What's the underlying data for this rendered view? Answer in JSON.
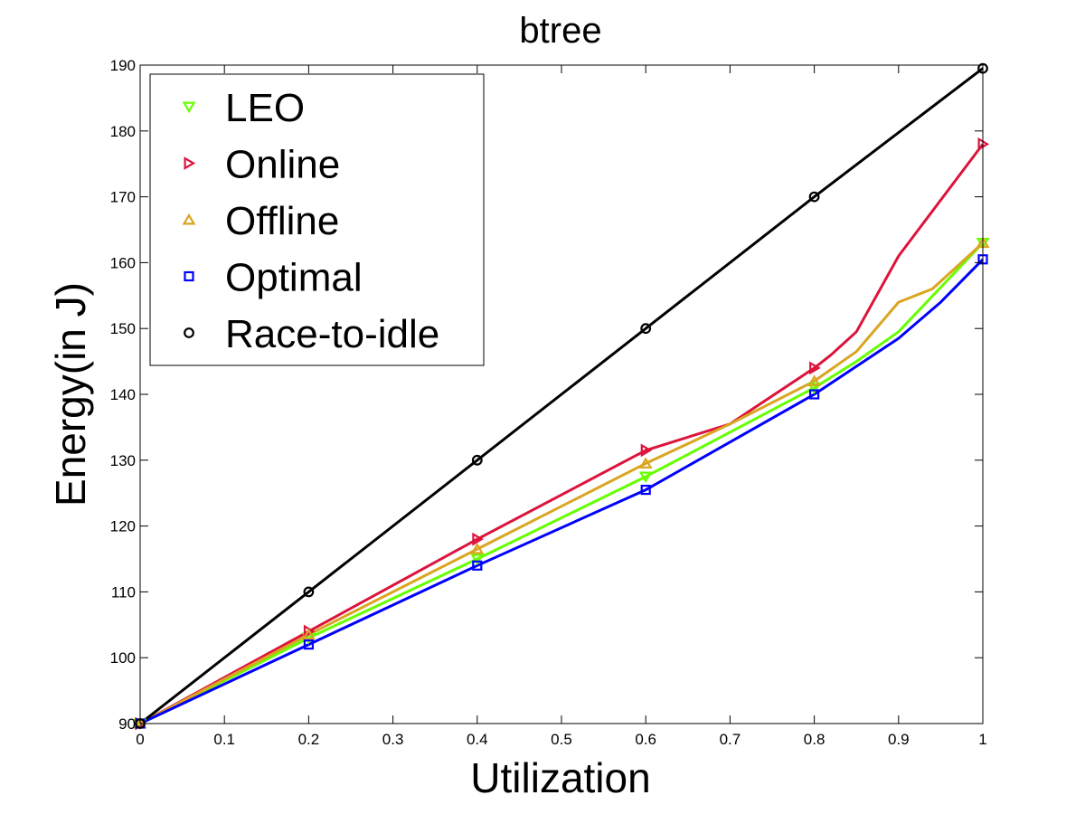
{
  "chart_data": {
    "type": "line",
    "title": "btree",
    "xlabel": "Utilization",
    "ylabel": "Energy(in J)",
    "xlim": [
      0,
      1
    ],
    "ylim": [
      90,
      190
    ],
    "xticks": [
      0,
      0.1,
      0.2,
      0.3,
      0.4,
      0.5,
      0.6,
      0.7,
      0.8,
      0.9,
      1
    ],
    "xtick_labels": [
      "0",
      "0.1",
      "0.2",
      "0.3",
      "0.4",
      "0.5",
      "0.6",
      "0.7",
      "0.8",
      "0.9",
      "1"
    ],
    "yticks": [
      90,
      100,
      110,
      120,
      130,
      140,
      150,
      160,
      170,
      180,
      190
    ],
    "ytick_labels": [
      "90",
      "100",
      "110",
      "120",
      "130",
      "140",
      "150",
      "160",
      "170",
      "180",
      "190"
    ],
    "grid": false,
    "legend_position": "top-left",
    "series": [
      {
        "name": "LEO",
        "color": "#66ff00",
        "marker": "triangle-down",
        "line": [
          [
            0,
            90
          ],
          [
            0.2,
            103
          ],
          [
            0.4,
            115
          ],
          [
            0.6,
            127.5
          ],
          [
            0.8,
            141
          ],
          [
            0.85,
            145
          ],
          [
            0.9,
            149.5
          ],
          [
            1,
            163
          ]
        ],
        "markers": [
          [
            0,
            90
          ],
          [
            0.2,
            103
          ],
          [
            0.4,
            115
          ],
          [
            0.6,
            127.5
          ],
          [
            0.8,
            141
          ],
          [
            1,
            163
          ]
        ]
      },
      {
        "name": "Online",
        "color": "#dc143c",
        "marker": "triangle-right",
        "line": [
          [
            0,
            90
          ],
          [
            0.2,
            104
          ],
          [
            0.4,
            118
          ],
          [
            0.6,
            131.5
          ],
          [
            0.7,
            135.5
          ],
          [
            0.8,
            144
          ],
          [
            0.82,
            146
          ],
          [
            0.85,
            149.5
          ],
          [
            0.9,
            161
          ],
          [
            1,
            178
          ]
        ],
        "markers": [
          [
            0,
            90
          ],
          [
            0.2,
            104
          ],
          [
            0.4,
            118
          ],
          [
            0.6,
            131.5
          ],
          [
            0.8,
            144
          ],
          [
            1,
            178
          ]
        ]
      },
      {
        "name": "Offline",
        "color": "#daa520",
        "marker": "triangle-up",
        "line": [
          [
            0,
            90
          ],
          [
            0.2,
            103.5
          ],
          [
            0.4,
            116.5
          ],
          [
            0.6,
            129.5
          ],
          [
            0.7,
            135.5
          ],
          [
            0.8,
            142
          ],
          [
            0.85,
            146.5
          ],
          [
            0.9,
            154
          ],
          [
            0.94,
            156
          ],
          [
            1,
            163
          ]
        ],
        "markers": [
          [
            0,
            90
          ],
          [
            0.2,
            103.5
          ],
          [
            0.4,
            116.5
          ],
          [
            0.6,
            129.5
          ],
          [
            0.8,
            142
          ],
          [
            1,
            163
          ]
        ]
      },
      {
        "name": "Optimal",
        "color": "#0000ff",
        "marker": "square",
        "line": [
          [
            0,
            90
          ],
          [
            0.2,
            102
          ],
          [
            0.4,
            114
          ],
          [
            0.6,
            125.5
          ],
          [
            0.8,
            140
          ],
          [
            0.9,
            148.5
          ],
          [
            0.95,
            154
          ],
          [
            1,
            160.5
          ]
        ],
        "markers": [
          [
            0,
            90
          ],
          [
            0.2,
            102
          ],
          [
            0.4,
            114
          ],
          [
            0.6,
            125.5
          ],
          [
            0.8,
            140
          ],
          [
            1,
            160.5
          ]
        ]
      },
      {
        "name": "Race-to-idle",
        "color": "#000000",
        "marker": "circle",
        "line": [
          [
            0,
            90
          ],
          [
            0.2,
            110
          ],
          [
            0.4,
            130
          ],
          [
            0.6,
            150
          ],
          [
            0.8,
            170
          ],
          [
            1,
            189.5
          ]
        ],
        "markers": [
          [
            0,
            90
          ],
          [
            0.2,
            110
          ],
          [
            0.4,
            130
          ],
          [
            0.6,
            150
          ],
          [
            0.8,
            170
          ],
          [
            1,
            189.5
          ]
        ]
      }
    ]
  }
}
